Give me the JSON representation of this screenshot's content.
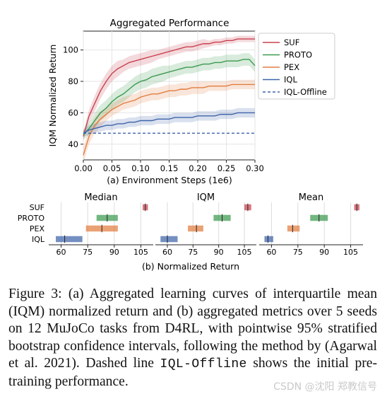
{
  "chart_data": [
    {
      "type": "line",
      "title": "Aggregated Performance",
      "xlabel": "(a) Environment Steps (1e6)",
      "ylabel": "IQM Normalized Return",
      "xlim": [
        0.0,
        0.3
      ],
      "ylim": [
        30,
        112
      ],
      "xticks": [
        "0.00",
        "0.05",
        "0.10",
        "0.15",
        "0.20",
        "0.25",
        "0.30"
      ],
      "yticks": [
        "40",
        "60",
        "80",
        "100"
      ],
      "grid": true,
      "legend_position": "top-right",
      "x": [
        0.0,
        0.01,
        0.02,
        0.03,
        0.04,
        0.05,
        0.06,
        0.07,
        0.08,
        0.09,
        0.1,
        0.11,
        0.12,
        0.13,
        0.14,
        0.15,
        0.16,
        0.17,
        0.18,
        0.19,
        0.2,
        0.21,
        0.22,
        0.23,
        0.24,
        0.25,
        0.26,
        0.27,
        0.28,
        0.29,
        0.3
      ],
      "series": [
        {
          "name": "SUF",
          "color": "#c9414f",
          "style": "solid",
          "values": [
            45,
            58,
            66,
            74,
            80,
            85,
            88,
            90,
            92,
            93,
            94,
            95,
            96,
            97,
            98,
            99,
            100,
            101,
            102,
            102,
            103,
            104,
            104,
            105,
            105,
            106,
            106,
            107,
            107,
            107,
            107
          ],
          "band": [
            3,
            4,
            5,
            5,
            5,
            5,
            5,
            4,
            4,
            4,
            4,
            4,
            4,
            3,
            3,
            3,
            3,
            3,
            3,
            3,
            3,
            3,
            2,
            2,
            2,
            2,
            2,
            2,
            2,
            2,
            2
          ]
        },
        {
          "name": "PROTO",
          "color": "#3b9a4f",
          "style": "solid",
          "values": [
            46,
            50,
            55,
            60,
            63,
            67,
            70,
            72,
            75,
            78,
            80,
            81,
            83,
            84,
            85,
            86,
            87,
            88,
            89,
            89,
            90,
            91,
            91,
            92,
            92,
            93,
            93,
            93,
            94,
            94,
            90
          ],
          "band": [
            3,
            4,
            5,
            5,
            5,
            5,
            5,
            5,
            5,
            5,
            5,
            5,
            5,
            5,
            5,
            4,
            4,
            4,
            4,
            4,
            4,
            4,
            4,
            4,
            4,
            4,
            4,
            4,
            4,
            4,
            4
          ]
        },
        {
          "name": "PEX",
          "color": "#e27d3f",
          "style": "solid",
          "values": [
            33,
            45,
            52,
            56,
            59,
            62,
            64,
            66,
            67,
            68,
            70,
            71,
            72,
            72,
            73,
            74,
            74,
            75,
            75,
            76,
            76,
            76,
            77,
            77,
            77,
            77,
            78,
            78,
            78,
            78,
            78
          ],
          "band": [
            5,
            5,
            5,
            5,
            4,
            4,
            4,
            4,
            4,
            4,
            4,
            4,
            4,
            4,
            4,
            4,
            4,
            4,
            4,
            4,
            4,
            4,
            3,
            3,
            3,
            3,
            3,
            3,
            3,
            3,
            3
          ]
        },
        {
          "name": "IQL",
          "color": "#3f64aa",
          "style": "solid",
          "values": [
            47,
            49,
            50,
            51,
            52,
            52,
            53,
            53,
            54,
            54,
            55,
            55,
            55,
            56,
            56,
            56,
            57,
            57,
            57,
            57,
            58,
            58,
            58,
            58,
            59,
            59,
            59,
            60,
            60,
            60,
            60
          ],
          "band": [
            2,
            3,
            3,
            3,
            3,
            3,
            3,
            3,
            3,
            3,
            3,
            3,
            3,
            3,
            3,
            3,
            3,
            3,
            3,
            3,
            3,
            3,
            3,
            3,
            3,
            3,
            3,
            3,
            3,
            3,
            3
          ]
        },
        {
          "name": "IQL-Offline",
          "color": "#3f64aa",
          "style": "dashed",
          "values": [
            47,
            47,
            47,
            47,
            47,
            47,
            47,
            47,
            47,
            47,
            47,
            47,
            47,
            47,
            47,
            47,
            47,
            47,
            47,
            47,
            47,
            47,
            47,
            47,
            47,
            47,
            47,
            47,
            47,
            47,
            47
          ]
        }
      ]
    },
    {
      "type": "interval",
      "xlabel": "(b) Normalized Return",
      "categories": [
        "SUF",
        "PROTO",
        "PEX",
        "IQL"
      ],
      "colors": [
        "#c9414f",
        "#3b9a4f",
        "#e27d3f",
        "#3f64aa"
      ],
      "xlim": [
        53,
        112
      ],
      "xticks": [
        "60",
        "75",
        "90",
        "105"
      ],
      "panels": [
        {
          "title": "Median",
          "intervals": [
            {
              "low": 106,
              "high": 109,
              "mid": 107.5
            },
            {
              "low": 80,
              "high": 92,
              "mid": 86
            },
            {
              "low": 74,
              "high": 92,
              "mid": 83
            },
            {
              "low": 57,
              "high": 72,
              "mid": 62
            }
          ]
        },
        {
          "title": "IQM",
          "intervals": [
            {
              "low": 105,
              "high": 109,
              "mid": 107
            },
            {
              "low": 87,
              "high": 97,
              "mid": 92
            },
            {
              "low": 72,
              "high": 81,
              "mid": 77
            },
            {
              "low": 56,
              "high": 66,
              "mid": 60
            }
          ]
        },
        {
          "title": "Mean",
          "intervals": [
            {
              "low": 107,
              "high": 110,
              "mid": 108.5
            },
            {
              "low": 82,
              "high": 92,
              "mid": 87
            },
            {
              "low": 69,
              "high": 76,
              "mid": 72
            },
            {
              "low": 56,
              "high": 61,
              "mid": 58
            }
          ]
        }
      ]
    }
  ],
  "caption": {
    "text": "Figure 3: (a) Aggregated learning curves of interquartile mean (IQM) normalized return and (b) aggregated metrics over 5 seeds on 12 MuJoCo tasks from D4RL, with pointwise 95% stratified bootstrap confidence intervals, following the method by (Agarwal et al. 2021). Dashed line",
    "code": "IQL-Offline",
    "tail": " shows the initial pre-training performance."
  },
  "watermark": "CSDN @沈阳 郑教信号"
}
